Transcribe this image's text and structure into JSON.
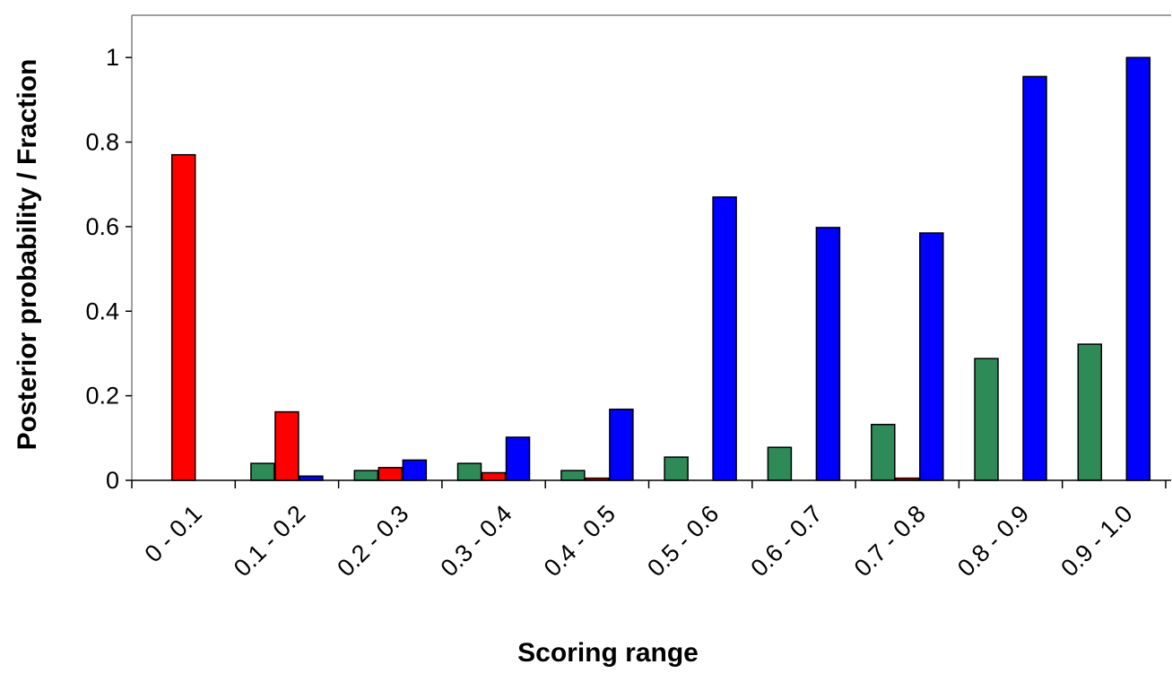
{
  "chart_data": {
    "type": "bar",
    "title": "",
    "xlabel": "Scoring range",
    "ylabel": "Posterior probability / Fraction",
    "ylim": [
      0,
      1.1
    ],
    "yticks": [
      0,
      0.2,
      0.4,
      0.6,
      0.8,
      1
    ],
    "ytick_labels": [
      "0",
      "0.2",
      "0.4",
      "0.6",
      "0.8",
      "1"
    ],
    "categories": [
      "0 - 0.1",
      "0.1 - 0.2",
      "0.2 - 0.3",
      "0.3 - 0.4",
      "0.4 - 0.5",
      "0.5 - 0.6",
      "0.6 - 0.7",
      "0.7 - 0.8",
      "0.8 - 0.9",
      "0.9 - 1.0"
    ],
    "legend": "none",
    "grid": false,
    "series": [
      {
        "color": "#2e8b57",
        "values": [
          0,
          0.04,
          0.023,
          0.04,
          0.023,
          0.055,
          0.078,
          0.132,
          0.288,
          0.322
        ]
      },
      {
        "color": "#ff0000",
        "values": [
          0.77,
          0.162,
          0.03,
          0.018,
          0.005,
          0,
          0,
          0.005,
          0,
          0
        ]
      },
      {
        "color": "#0000ff",
        "values": [
          0,
          0.01,
          0.048,
          0.102,
          0.168,
          0.67,
          0.598,
          0.585,
          0.955,
          1.0
        ]
      }
    ]
  }
}
